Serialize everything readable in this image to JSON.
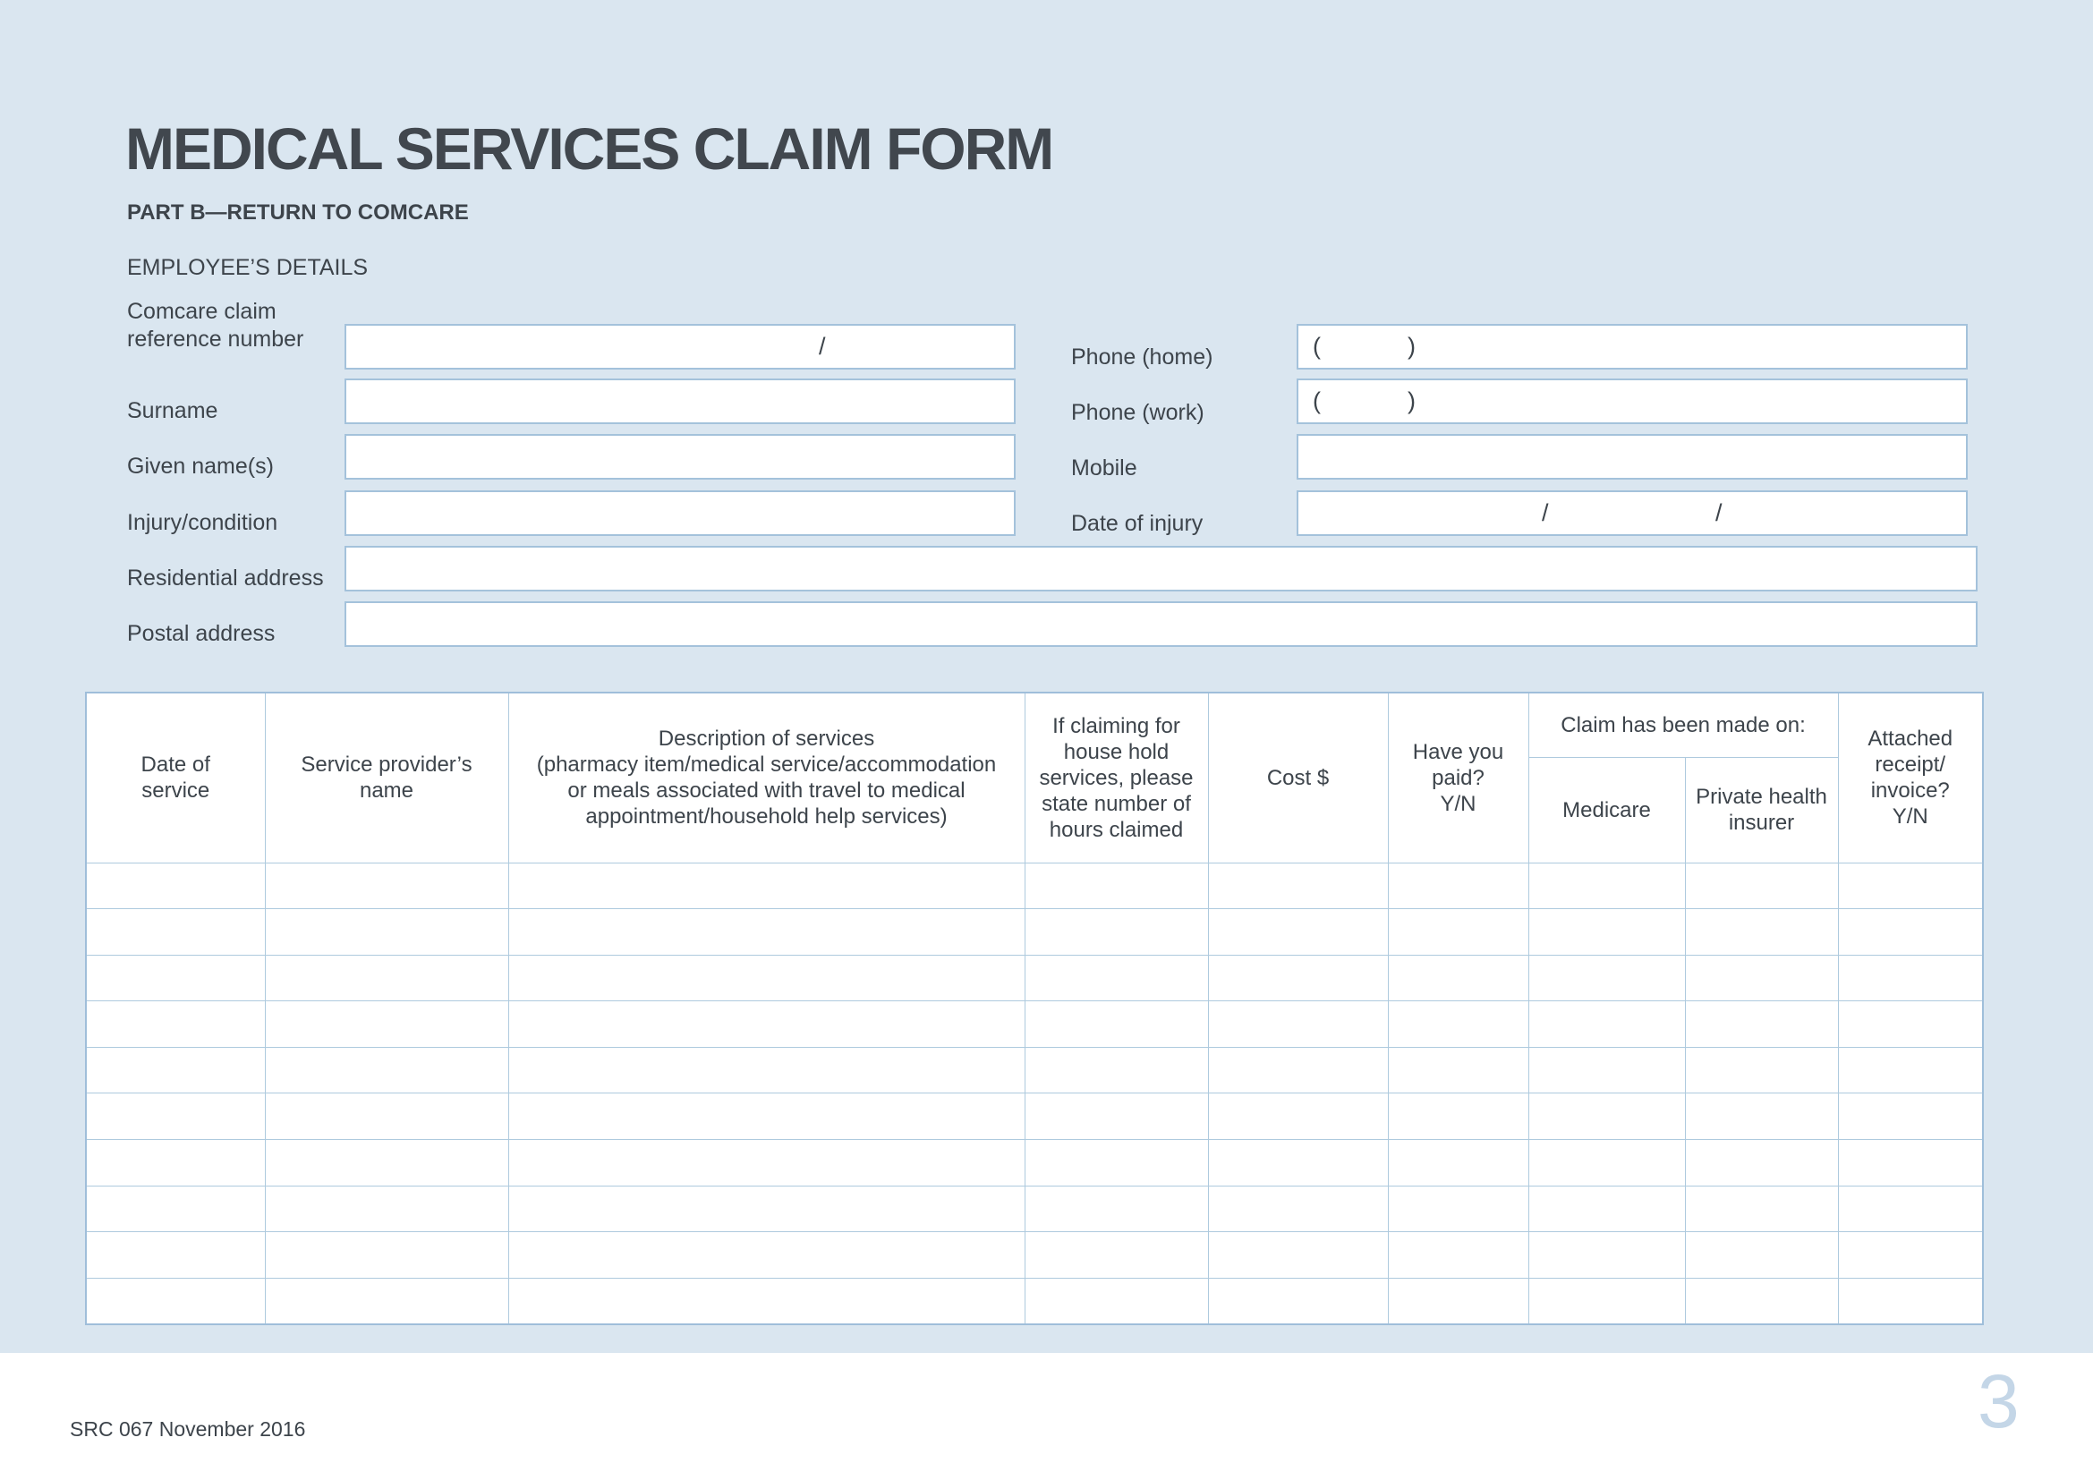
{
  "page": {
    "title": "MEDICAL SERVICES CLAIM FORM",
    "subtitle": "PART B—RETURN TO COMCARE",
    "footer": {
      "form_code": "SRC 067 November 2016",
      "page_number": "3"
    },
    "colors": {
      "background": "#dae6f0",
      "field_border": "#a4c2db",
      "grid_line": "#aecade",
      "text": "#3d444b",
      "page_number": "#c4d6e7"
    }
  },
  "employee_details": {
    "heading": "EMPLOYEE’S DETAILS",
    "fields": {
      "comcare_ref": {
        "label": "Comcare claim\nreference number",
        "value": "",
        "separator": "/"
      },
      "surname": {
        "label": "Surname",
        "value": ""
      },
      "given_names": {
        "label": "Given name(s)",
        "value": ""
      },
      "injury_condition": {
        "label": "Injury/condition",
        "value": ""
      },
      "residential_address": {
        "label": "Residential address",
        "value": ""
      },
      "postal_address": {
        "label": "Postal address",
        "value": ""
      },
      "phone_home": {
        "label": "Phone (home)",
        "value": "",
        "area_code_open": "(",
        "area_code_close": ")"
      },
      "phone_work": {
        "label": "Phone (work)",
        "value": "",
        "area_code_open": "(",
        "area_code_close": ")"
      },
      "mobile": {
        "label": "Mobile",
        "value": ""
      },
      "date_of_injury": {
        "label": "Date of injury",
        "value": "",
        "separator1": "/",
        "separator2": "/"
      }
    }
  },
  "claims_table": {
    "headers": {
      "date_of_service": "Date of\nservice",
      "provider_name": "Service provider’s\nname",
      "description_title": "Description of services",
      "description_detail": "(pharmacy item/medical service/accommodation\nor meals associated with travel to medical\nappointment/household help services)",
      "household_hours": "If claiming for\nhouse hold\nservices, please\nstate number of\nhours claimed",
      "cost": "Cost $",
      "paid": "Have you\npaid?\nY/N",
      "claim_made_on": "Claim has been made on:",
      "medicare": "Medicare",
      "private_health_insurer": "Private health\ninsurer",
      "attached_receipt": "Attached\nreceipt/\ninvoice?\nY/N"
    },
    "rows": [
      [
        "",
        "",
        "",
        "",
        "",
        "",
        "",
        "",
        ""
      ],
      [
        "",
        "",
        "",
        "",
        "",
        "",
        "",
        "",
        ""
      ],
      [
        "",
        "",
        "",
        "",
        "",
        "",
        "",
        "",
        ""
      ],
      [
        "",
        "",
        "",
        "",
        "",
        "",
        "",
        "",
        ""
      ],
      [
        "",
        "",
        "",
        "",
        "",
        "",
        "",
        "",
        ""
      ],
      [
        "",
        "",
        "",
        "",
        "",
        "",
        "",
        "",
        ""
      ],
      [
        "",
        "",
        "",
        "",
        "",
        "",
        "",
        "",
        ""
      ],
      [
        "",
        "",
        "",
        "",
        "",
        "",
        "",
        "",
        ""
      ],
      [
        "",
        "",
        "",
        "",
        "",
        "",
        "",
        "",
        ""
      ],
      [
        "",
        "",
        "",
        "",
        "",
        "",
        "",
        "",
        ""
      ]
    ]
  }
}
